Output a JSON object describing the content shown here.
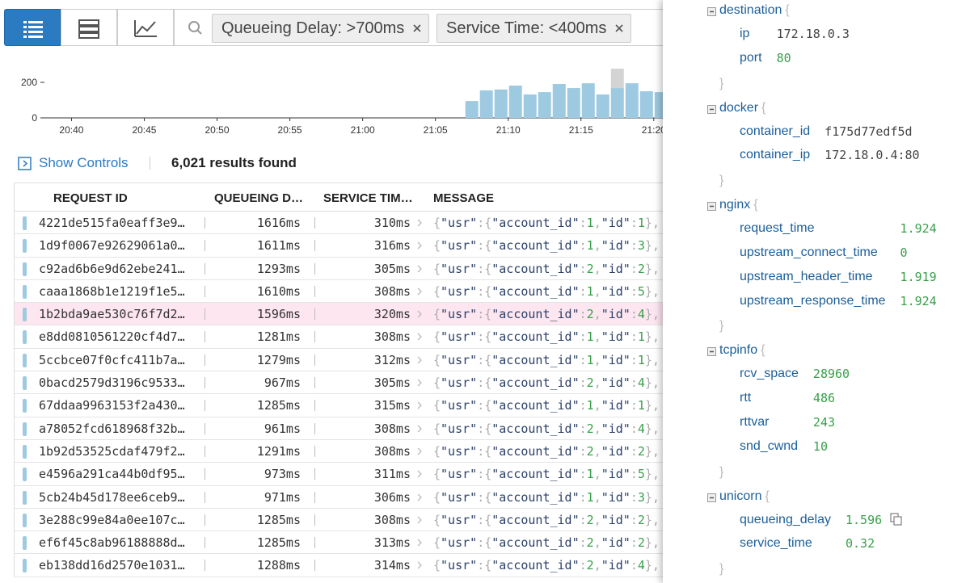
{
  "toolbar": {
    "filters": [
      "Queueing Delay: >700ms",
      "Service Time: <400ms"
    ]
  },
  "histogram": {
    "type": "bar",
    "xlim": [
      1236.2,
      1300
    ],
    "ylim": [
      0,
      300
    ],
    "yticks": [
      0,
      200
    ],
    "xticks": [
      {
        "value": 1240,
        "label": "20:40"
      },
      {
        "value": 1245,
        "label": "20:45"
      },
      {
        "value": 1250,
        "label": "20:50"
      },
      {
        "value": 1255,
        "label": "20:55"
      },
      {
        "value": 1260,
        "label": "21:00"
      },
      {
        "value": 1265,
        "label": "21:05"
      },
      {
        "value": 1270,
        "label": "21:10"
      },
      {
        "value": 1275,
        "label": "21:15"
      },
      {
        "value": 1280,
        "label": "21:20"
      }
    ],
    "x": [
      1267.5,
      1268.5,
      1269.5,
      1270.5,
      1271.5,
      1272.5,
      1273.5,
      1274.5,
      1275.5,
      1276.5,
      1277.5,
      1278.5,
      1279.5,
      1280.5
    ],
    "series": [
      {
        "color": "#9ecae1",
        "values": [
          95,
          155,
          160,
          182,
          132,
          145,
          191,
          168,
          195,
          132,
          168,
          195,
          150,
          145
        ]
      },
      {
        "color": "#d4d4d4",
        "values": [
          null,
          null,
          null,
          null,
          null,
          null,
          null,
          null,
          null,
          null,
          109,
          null,
          null,
          null
        ]
      }
    ]
  },
  "controls": {
    "show_controls": "Show Controls",
    "results": "6,021 results found"
  },
  "table": {
    "columns": [
      "REQUEST ID",
      "QUEUEING D…",
      "SERVICE TIM…",
      "MESSAGE"
    ],
    "selected_row": 4,
    "rows": [
      [
        "4221de515fa0eaff3e9…",
        "1616ms",
        "310ms",
        "{\"usr\":{\"account_id\":1,\"id\":1},\""
      ],
      [
        "1d9f0067e92629061a0…",
        "1611ms",
        "316ms",
        "{\"usr\":{\"account_id\":1,\"id\":3},\""
      ],
      [
        "c92ad6b6e9d62ebe241…",
        "1293ms",
        "305ms",
        "{\"usr\":{\"account_id\":2,\"id\":2},\""
      ],
      [
        "caaa1868b1e1219f1e5…",
        "1610ms",
        "308ms",
        "{\"usr\":{\"account_id\":1,\"id\":5},\""
      ],
      [
        "1b2bda9ae530c76f7d2…",
        "1596ms",
        "320ms",
        "{\"usr\":{\"account_id\":2,\"id\":4},\""
      ],
      [
        "e8dd0810561220cf4d7…",
        "1281ms",
        "308ms",
        "{\"usr\":{\"account_id\":1,\"id\":1},\""
      ],
      [
        "5ccbce07f0cfc411b7a…",
        "1279ms",
        "312ms",
        "{\"usr\":{\"account_id\":1,\"id\":1},\""
      ],
      [
        "0bacd2579d3196c9533…",
        "967ms",
        "305ms",
        "{\"usr\":{\"account_id\":2,\"id\":4},\""
      ],
      [
        "67ddaa9963153f2a430…",
        "1285ms",
        "315ms",
        "{\"usr\":{\"account_id\":1,\"id\":1},\""
      ],
      [
        "a78052fcd618968f32b…",
        "961ms",
        "308ms",
        "{\"usr\":{\"account_id\":2,\"id\":4},\""
      ],
      [
        "1b92d53525cdaf479f2…",
        "1291ms",
        "308ms",
        "{\"usr\":{\"account_id\":2,\"id\":2},\""
      ],
      [
        "e4596a291ca44b0df95…",
        "973ms",
        "311ms",
        "{\"usr\":{\"account_id\":1,\"id\":5},\""
      ],
      [
        "5cb24b45d178ee6ceb9…",
        "971ms",
        "306ms",
        "{\"usr\":{\"account_id\":1,\"id\":3},\""
      ],
      [
        "3e288c99e84a0ee107c…",
        "1285ms",
        "308ms",
        "{\"usr\":{\"account_id\":2,\"id\":2},\""
      ],
      [
        "ef6f45c8ab96188888d…",
        "1285ms",
        "313ms",
        "{\"usr\":{\"account_id\":2,\"id\":2},\""
      ],
      [
        "eb138dd16d2570e1031…",
        "1288ms",
        "314ms",
        "{\"usr\":{\"account_id\":2,\"id\":4},\""
      ]
    ]
  },
  "panel": {
    "brace_open": "{",
    "brace_close": "}",
    "sections": [
      {
        "name": "destination",
        "fields": [
          [
            "ip",
            "172.18.0.3"
          ],
          [
            "port",
            80
          ]
        ]
      },
      {
        "name": "docker",
        "fields": [
          [
            "container_id",
            "f175d77edf5d"
          ],
          [
            "container_ip",
            "172.18.0.4:80"
          ]
        ]
      },
      {
        "name": "nginx",
        "fields": [
          [
            "request_time",
            1.924
          ],
          [
            "upstream_connect_time",
            0
          ],
          [
            "upstream_header_time",
            1.919
          ],
          [
            "upstream_response_time",
            1.924
          ]
        ]
      },
      {
        "name": "tcpinfo",
        "fields": [
          [
            "rcv_space",
            28960
          ],
          [
            "rtt",
            486
          ],
          [
            "rttvar",
            243
          ],
          [
            "snd_cwnd",
            10
          ]
        ]
      },
      {
        "name": "unicorn",
        "fields": [
          [
            "queueing_delay",
            1.596
          ],
          [
            "service_time",
            0.32
          ]
        ]
      }
    ]
  }
}
